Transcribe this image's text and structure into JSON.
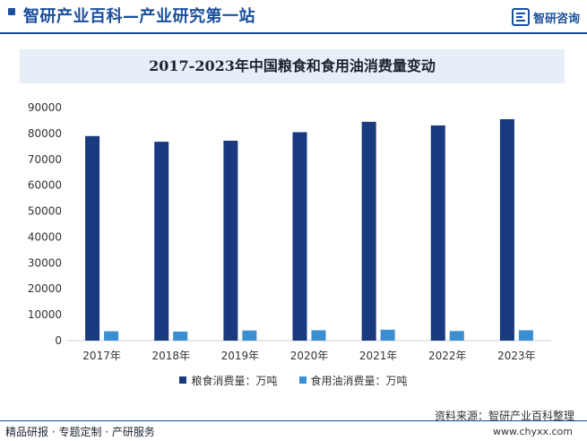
{
  "header": {
    "site_title": "智研产业百科—产业研究第一站",
    "logo_text": "智研咨询"
  },
  "chart_data": {
    "type": "bar",
    "title": "2017-2023年中国粮食和食用油消费量变动",
    "categories": [
      "2017年",
      "2018年",
      "2019年",
      "2020年",
      "2021年",
      "2022年",
      "2023年"
    ],
    "series": [
      {
        "name": "粮食消费量：万吨",
        "color": "#1a3a7f",
        "values": [
          79000,
          76800,
          77200,
          80500,
          84500,
          83100,
          85500
        ]
      },
      {
        "name": "食用油消费量：万吨",
        "color": "#3b8fd0",
        "values": [
          3600,
          3500,
          3900,
          4000,
          4200,
          3700,
          4000
        ]
      }
    ],
    "ylim": [
      0,
      90000
    ],
    "yticks": [
      "0",
      "10000",
      "20000",
      "30000",
      "40000",
      "50000",
      "60000",
      "70000",
      "80000",
      "90000"
    ],
    "grid": false,
    "legend_position": "bottom"
  },
  "footer": {
    "source": "资料来源：智研产业百科整理",
    "left_text": "精品研报 · 专题定制 · 产研服务",
    "website": "www.chyxx.com"
  }
}
